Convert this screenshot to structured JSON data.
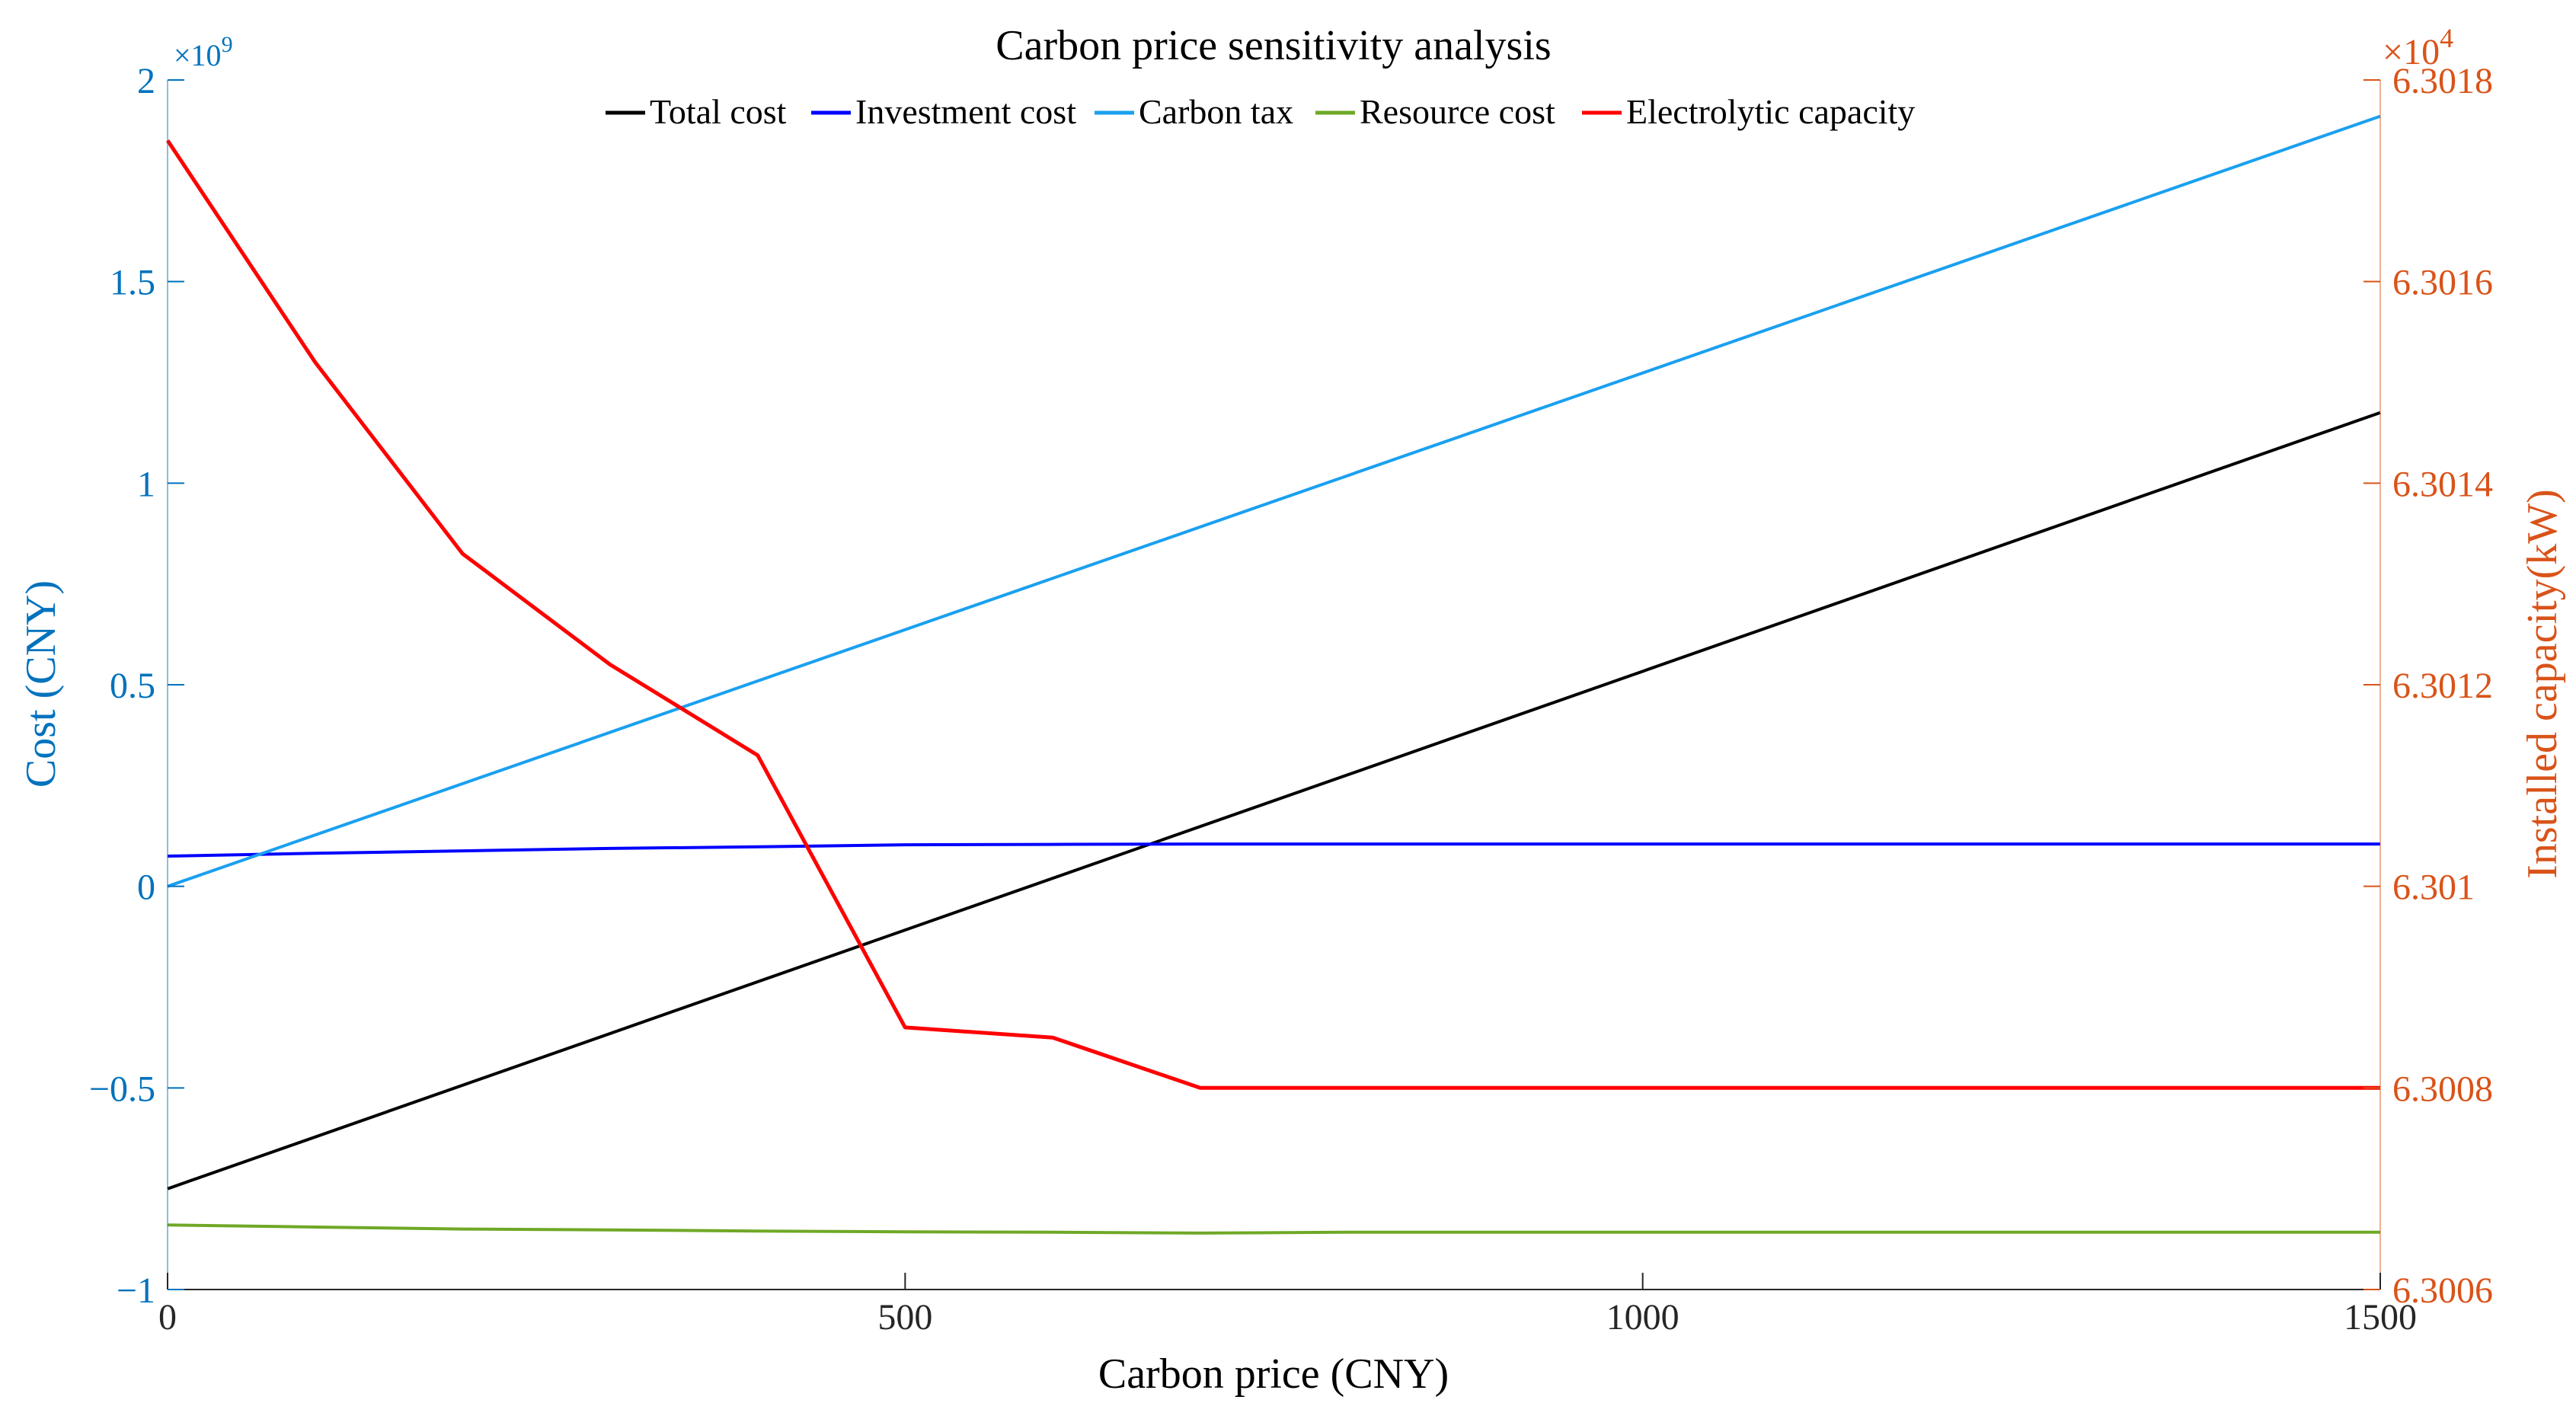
{
  "chart_data": {
    "type": "line",
    "title": "Carbon price sensitivity analysis",
    "xlabel": "Carbon price (CNY)",
    "ylabel_left": "Cost (CNY)",
    "ylabel_right": "Installed capacity(kW)",
    "left_exponent": {
      "base": "×10",
      "power": "9"
    },
    "right_exponent": {
      "base": "×10",
      "power": "4"
    },
    "xlim": [
      0,
      1500
    ],
    "ylim_left": [
      -1,
      2
    ],
    "ylim_right": [
      6.3006,
      6.3018
    ],
    "xticks": [
      {
        "value": 0,
        "label": "0"
      },
      {
        "value": 500,
        "label": "500"
      },
      {
        "value": 1000,
        "label": "1000"
      },
      {
        "value": 1500,
        "label": "1500"
      }
    ],
    "yticks_left": [
      {
        "value": -1,
        "label": "−1"
      },
      {
        "value": -0.5,
        "label": "−0.5"
      },
      {
        "value": 0,
        "label": "0"
      },
      {
        "value": 0.5,
        "label": "0.5"
      },
      {
        "value": 1,
        "label": "1"
      },
      {
        "value": 1.5,
        "label": "1.5"
      },
      {
        "value": 2,
        "label": "2"
      }
    ],
    "yticks_right": [
      {
        "value": 6.3006,
        "label": "6.3006"
      },
      {
        "value": 6.3008,
        "label": "6.3008"
      },
      {
        "value": 6.301,
        "label": "6.301"
      },
      {
        "value": 6.3012,
        "label": "6.3012"
      },
      {
        "value": 6.3014,
        "label": "6.3014"
      },
      {
        "value": 6.3016,
        "label": "6.3016"
      },
      {
        "value": 6.3018,
        "label": "6.3018"
      }
    ],
    "legend_position": "top-center",
    "colors": {
      "left_axis": "#0072BD",
      "right_axis": "#D95319",
      "axis_black": "#262626"
    },
    "series": [
      {
        "name": "Total cost",
        "axis": "left",
        "color": "#000000",
        "x": [
          0,
          1500
        ],
        "values": [
          -0.75,
          1.175
        ]
      },
      {
        "name": "Investment cost",
        "axis": "left",
        "color": "#0000FF",
        "x": [
          0,
          100,
          200,
          300,
          400,
          500,
          600,
          700,
          800,
          900,
          1000,
          1100,
          1200,
          1300,
          1400,
          1500
        ],
        "values": [
          0.075,
          0.082,
          0.088,
          0.094,
          0.098,
          0.103,
          0.104,
          0.105,
          0.105,
          0.105,
          0.105,
          0.105,
          0.105,
          0.105,
          0.105,
          0.105
        ]
      },
      {
        "name": "Carbon tax",
        "axis": "left",
        "color": "#1AA0F0",
        "x": [
          0,
          1500
        ],
        "values": [
          0.0,
          1.91
        ]
      },
      {
        "name": "Resource cost",
        "axis": "left",
        "color": "#6FA826",
        "x": [
          0,
          100,
          200,
          300,
          400,
          500,
          600,
          700,
          800,
          900,
          1000,
          1100,
          1200,
          1300,
          1400,
          1500
        ],
        "values": [
          -0.84,
          -0.845,
          -0.85,
          -0.852,
          -0.855,
          -0.857,
          -0.858,
          -0.86,
          -0.858,
          -0.858,
          -0.858,
          -0.858,
          -0.858,
          -0.858,
          -0.858,
          -0.858
        ]
      },
      {
        "name": "Electrolytic capacity",
        "axis": "right",
        "color": "#FF0000",
        "x": [
          0,
          100,
          200,
          300,
          400,
          500,
          600,
          700,
          800,
          900,
          1000,
          1100,
          1200,
          1300,
          1400,
          1500
        ],
        "values": [
          6.30174,
          6.30152,
          6.30133,
          6.30122,
          6.30113,
          6.30086,
          6.30085,
          6.3008,
          6.3008,
          6.3008,
          6.3008,
          6.3008,
          6.3008,
          6.3008,
          6.3008,
          6.3008
        ]
      }
    ]
  }
}
